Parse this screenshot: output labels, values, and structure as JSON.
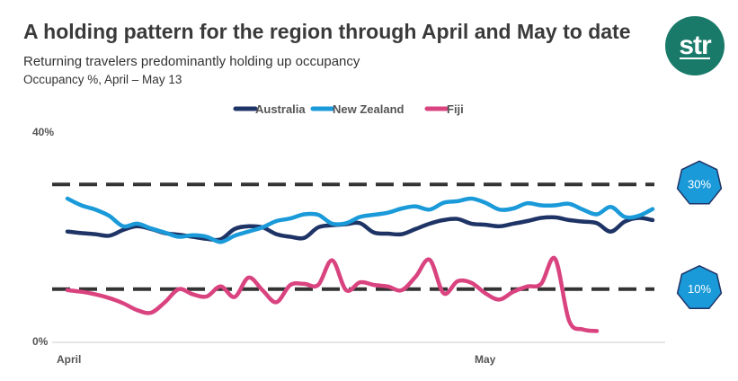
{
  "header": {
    "title": "A holding pattern for the region through April and May to date",
    "subtitle": "Returning travelers predominantly holding up occupancy",
    "measure": "Occupancy %, April – May 13",
    "logo_text": "str"
  },
  "colors": {
    "australia": "#1f3466",
    "new_zealand": "#1a9ad9",
    "fiji": "#d9437f",
    "reference": "#333333",
    "badge": "#1a9ad9",
    "logo_bg": "#1a7a6a"
  },
  "chart_data": {
    "type": "line",
    "title": "A holding pattern for the region through April and May to date",
    "subtitle": "Returning travelers predominantly holding up occupancy",
    "ylabel": "Occupancy %, April – May 13",
    "xlabel": "",
    "x": [
      "Apr 1",
      "Apr 2",
      "Apr 3",
      "Apr 4",
      "Apr 5",
      "Apr 6",
      "Apr 7",
      "Apr 8",
      "Apr 9",
      "Apr 10",
      "Apr 11",
      "Apr 12",
      "Apr 13",
      "Apr 14",
      "Apr 15",
      "Apr 16",
      "Apr 17",
      "Apr 18",
      "Apr 19",
      "Apr 20",
      "Apr 21",
      "Apr 22",
      "Apr 23",
      "Apr 24",
      "Apr 25",
      "Apr 26",
      "Apr 27",
      "Apr 28",
      "Apr 29",
      "Apr 30",
      "May 1",
      "May 2",
      "May 3",
      "May 4",
      "May 5",
      "May 6",
      "May 7",
      "May 8",
      "May 9",
      "May 10",
      "May 11",
      "May 12",
      "May 13"
    ],
    "x_tick_labels": [
      "April",
      "May"
    ],
    "y_tick_labels": [
      "0%",
      "40%"
    ],
    "ylim": [
      0,
      40
    ],
    "grid": false,
    "legend": "top-center",
    "series": [
      {
        "name": "Australia",
        "color": "#1f3466",
        "values": [
          21.0,
          20.7,
          20.5,
          20.2,
          21.3,
          22.0,
          21.5,
          20.7,
          20.4,
          20.0,
          19.6,
          19.5,
          21.5,
          22.0,
          21.8,
          20.5,
          20.0,
          19.8,
          21.8,
          22.2,
          22.4,
          22.6,
          20.8,
          20.6,
          20.5,
          21.5,
          22.5,
          23.2,
          23.4,
          22.5,
          22.3,
          22.0,
          22.5,
          23.0,
          23.6,
          23.7,
          23.2,
          22.9,
          22.6,
          21.0,
          22.9,
          23.6,
          23.2
        ]
      },
      {
        "name": "New Zealand",
        "color": "#1a9ad9",
        "values": [
          27.3,
          26.0,
          25.2,
          24.0,
          22.0,
          22.5,
          21.6,
          20.8,
          20.0,
          20.3,
          20.0,
          19.0,
          20.2,
          21.0,
          21.8,
          23.0,
          23.5,
          24.3,
          24.2,
          22.5,
          22.6,
          23.8,
          24.2,
          24.6,
          25.4,
          25.8,
          25.2,
          26.5,
          26.8,
          27.3,
          26.5,
          25.2,
          25.4,
          26.4,
          26.0,
          26.0,
          26.3,
          25.2,
          24.3,
          25.7,
          23.8,
          24.0,
          25.3
        ]
      },
      {
        "name": "Fiji",
        "color": "#d9437f",
        "values": [
          9.8,
          9.5,
          9.0,
          8.3,
          7.3,
          6.0,
          5.5,
          7.5,
          10.0,
          9.0,
          8.6,
          10.5,
          8.5,
          12.2,
          9.8,
          7.5,
          10.8,
          11.0,
          10.8,
          15.5,
          9.8,
          11.3,
          10.8,
          10.5,
          9.8,
          12.4,
          15.6,
          9.2,
          11.5,
          11.2,
          9.2,
          8.0,
          9.5,
          10.5,
          11.0,
          15.8,
          4.0,
          2.3,
          2.0,
          null,
          null,
          null,
          null
        ]
      }
    ],
    "reference_lines": [
      {
        "value": 30,
        "label": "30%"
      },
      {
        "value": 10,
        "label": "10%"
      }
    ]
  }
}
